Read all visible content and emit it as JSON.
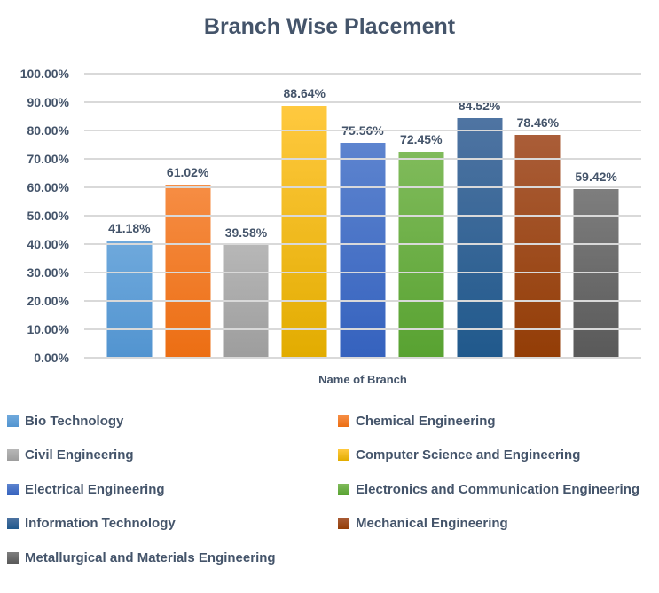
{
  "chart_data": {
    "type": "bar",
    "title": "Branch Wise Placement",
    "xlabel": "Name of Branch",
    "ylabel": "",
    "ylim": [
      0,
      100
    ],
    "grid": true,
    "legend_position": "bottom",
    "y_tick_labels_top_to_bottom": [
      "100.00%",
      "90.00%",
      "80.00%",
      "70.00%",
      "60.00%",
      "50.00%",
      "40.00%",
      "30.00%",
      "20.00%",
      "10.00%",
      "0.00%"
    ],
    "categories": [
      "Bio Technology",
      "Chemical Engineering",
      "Civil Engineering",
      "Computer Science and Engineering",
      "Electrical Engineering",
      "Electronics and Communication Engineering",
      "Information Technology",
      "Mechanical Engineering",
      "Metallurgical and Materials Engineering"
    ],
    "values": [
      41.18,
      61.02,
      39.58,
      88.64,
      75.56,
      72.45,
      84.52,
      78.46,
      59.42
    ],
    "value_labels": [
      "41.18%",
      "61.02%",
      "39.58%",
      "88.64%",
      "75.56%",
      "72.45%",
      "84.52%",
      "78.46%",
      "59.42%"
    ],
    "series_colors": [
      {
        "top": "#6FA9DC",
        "bottom": "#5294D0",
        "swatch": "#5B9BD5"
      },
      {
        "top": "#F68D44",
        "bottom": "#EC6E13",
        "swatch": "#ED7D31"
      },
      {
        "top": "#B7B7B7",
        "bottom": "#9D9D9D",
        "swatch": "#A6A6A6"
      },
      {
        "top": "#FFC93F",
        "bottom": "#E2AC00",
        "swatch": "#FFC000"
      },
      {
        "top": "#5D84CF",
        "bottom": "#3562BE",
        "swatch": "#4472C4"
      },
      {
        "top": "#80BB5B",
        "bottom": "#58A231",
        "swatch": "#70AD47"
      },
      {
        "top": "#4F74A2",
        "bottom": "#20598C",
        "swatch": "#2E5F8F"
      },
      {
        "top": "#AA5D38",
        "bottom": "#933D06",
        "swatch": "#A54F1D"
      },
      {
        "top": "#7E7E7E",
        "bottom": "#595959",
        "swatch": "#6B6B6B"
      }
    ]
  },
  "colors": {
    "text": "#44546A",
    "gridline": "#D9D9D9",
    "background": "#FFFFFF"
  }
}
